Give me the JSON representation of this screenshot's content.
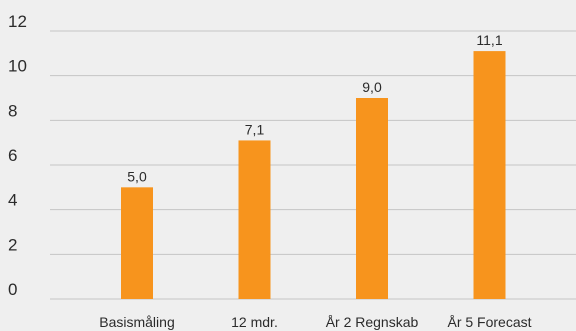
{
  "chart_data": {
    "type": "bar",
    "categories": [
      "Basismåling",
      "12 mdr.",
      "År 2 Regnskab",
      "År 5 Forecast"
    ],
    "values": [
      5.0,
      7.1,
      9.0,
      11.1
    ],
    "value_labels": [
      "5,0",
      "7,1",
      "9,0",
      "11,1"
    ],
    "title": "",
    "xlabel": "",
    "ylabel": "",
    "ylim": [
      0,
      12
    ],
    "yticks": [
      0,
      2,
      4,
      6,
      8,
      10,
      12
    ],
    "grid": true,
    "legend": "none",
    "bar_color": "#f7941d",
    "grid_color": "#c4c4c4",
    "background": "#efefef"
  }
}
